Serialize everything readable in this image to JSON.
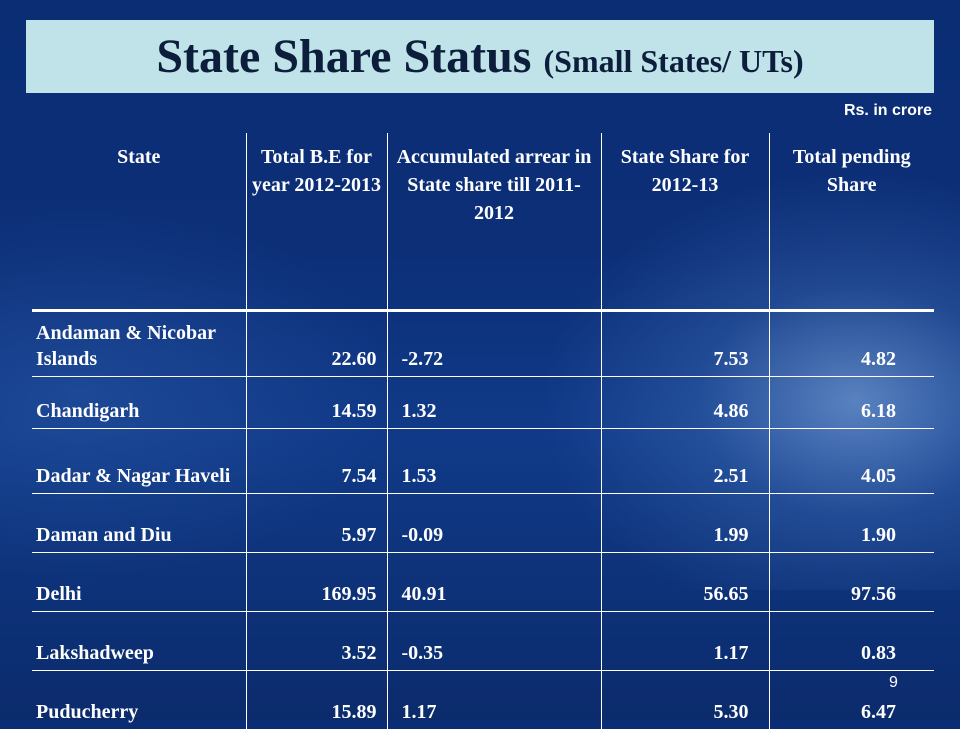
{
  "slide": {
    "title": "State Share Status",
    "title_sub": "(Small States/ UTs)",
    "unit": "Rs. in crore",
    "page_number": "9"
  },
  "table": {
    "headers": [
      "State",
      "Total B.E for year 2012-2013",
      "Accumulated arrear in State share till 2011-2012",
      "State Share for  2012-13",
      "Total pending Share"
    ],
    "rows": [
      [
        "Andaman & Nicobar Islands",
        "22.60",
        "-2.72",
        "7.53",
        "4.82"
      ],
      [
        "Chandigarh",
        "14.59",
        "1.32",
        "4.86",
        "6.18"
      ],
      [
        "Dadar & Nagar Haveli",
        "7.54",
        "1.53",
        "2.51",
        "4.05"
      ],
      [
        "Daman and Diu",
        "5.97",
        "-0.09",
        "1.99",
        "1.90"
      ],
      [
        "Delhi",
        "169.95",
        "40.91",
        "56.65",
        "97.56"
      ],
      [
        "Lakshadweep",
        "3.52",
        "-0.35",
        "1.17",
        "0.83"
      ],
      [
        "Puducherry",
        "15.89",
        "1.17",
        "5.30",
        "6.47"
      ]
    ]
  },
  "colors": {
    "background": "#0c2f78",
    "title_box": "#bfe3e8",
    "title_text": "#0d1e3c",
    "table_text": "#ffffff"
  }
}
